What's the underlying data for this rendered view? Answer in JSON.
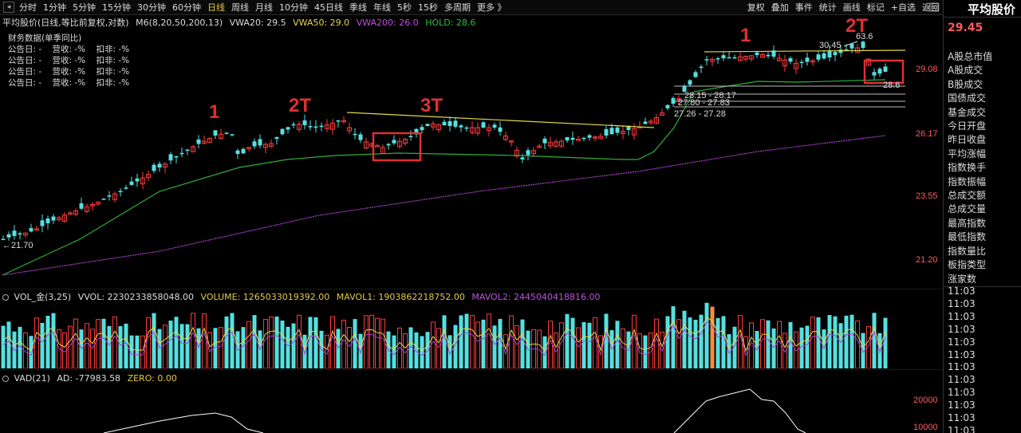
{
  "toolbar": {
    "periods": [
      "分时",
      "1分钟",
      "5分钟",
      "15分钟",
      "30分钟",
      "60分钟",
      "日线",
      "周线",
      "月线",
      "10分钟",
      "45日线",
      "季线",
      "年线",
      "5秒",
      "15秒",
      "多周期",
      "更多 》"
    ],
    "active_index": 6,
    "right_items": [
      "复权",
      "叠加",
      "事件",
      "统计",
      "画线",
      "标记",
      "+自选",
      "返回"
    ]
  },
  "main_info": {
    "name": "平均股价(日线,等比前复权,对数)",
    "ma": "M6(8,20,50,200,13)",
    "vwa20": "VWA20: 29.5",
    "vwa50": "VWA50: 29.0",
    "vwa200": "VWA200: 26.0",
    "hold": "HOLD: 28.6"
  },
  "fin": {
    "title": "财务数据(单季同比)",
    "rows": [
      "公告日: -    营收: -%    扣非: -%",
      "公告日: -    营收: -%    扣非: -%",
      "公告日: -    营收: -%    扣非: -%",
      "公告日: -    营收: -%    扣非: -%"
    ]
  },
  "price_axis": [
    "29.08",
    "26.17",
    "23.55",
    "21.20"
  ],
  "annotations": {
    "low_label": "←21.70",
    "high_label": "63.6",
    "price_30_45": "30.45",
    "hold_label": "28.6",
    "ranges": [
      "28.15 - 28.17",
      "27.80 - 27.83",
      "27.26 - 27.28"
    ],
    "marks": [
      "1",
      "2T",
      "3T",
      "1",
      "2T"
    ]
  },
  "vol_info": {
    "name": "VOL_金(3,25)",
    "vvol": "VVOL: 2230233858048.00",
    "volume": "VOLUME: 1265033019392.00",
    "mavol1": "MAVOL1: 1903862218752.00",
    "mavol2": "MAVOL2: 2445040418816.00"
  },
  "vad_info": {
    "name": "VAD(21)",
    "ad": "AD: -77983.58",
    "zero": "ZERO: 0.00"
  },
  "vad_axis": [
    "20000",
    "10000"
  ],
  "sidebar": {
    "title": "平均股价",
    "price": "29.45",
    "menu": [
      "A股总市值",
      "A股成交",
      "B股成交",
      "国债成交",
      "基金成交",
      "今日开盘",
      "昨日收盘",
      "平均涨幅",
      "指数换手",
      "指数振幅",
      "总成交额",
      "总成交量",
      "最高指数",
      "最低指数",
      "指数量比",
      "板指类型",
      "涨家数"
    ],
    "times": [
      "11:03",
      "11:03",
      "11:03",
      "11:03",
      "11:03",
      "11:03",
      "11:03",
      "11:03",
      "11:03",
      "11:03",
      "11:03",
      "11:03"
    ]
  },
  "colors": {
    "up": "#ff3b3b",
    "down": "#55e0e0",
    "ma_yellow": "#e6d84a",
    "ma_green": "#2fae3a",
    "ma_purple": "#b040d0",
    "vol_orange": "#ff8a3d",
    "vad_line": "#ffffff"
  }
}
